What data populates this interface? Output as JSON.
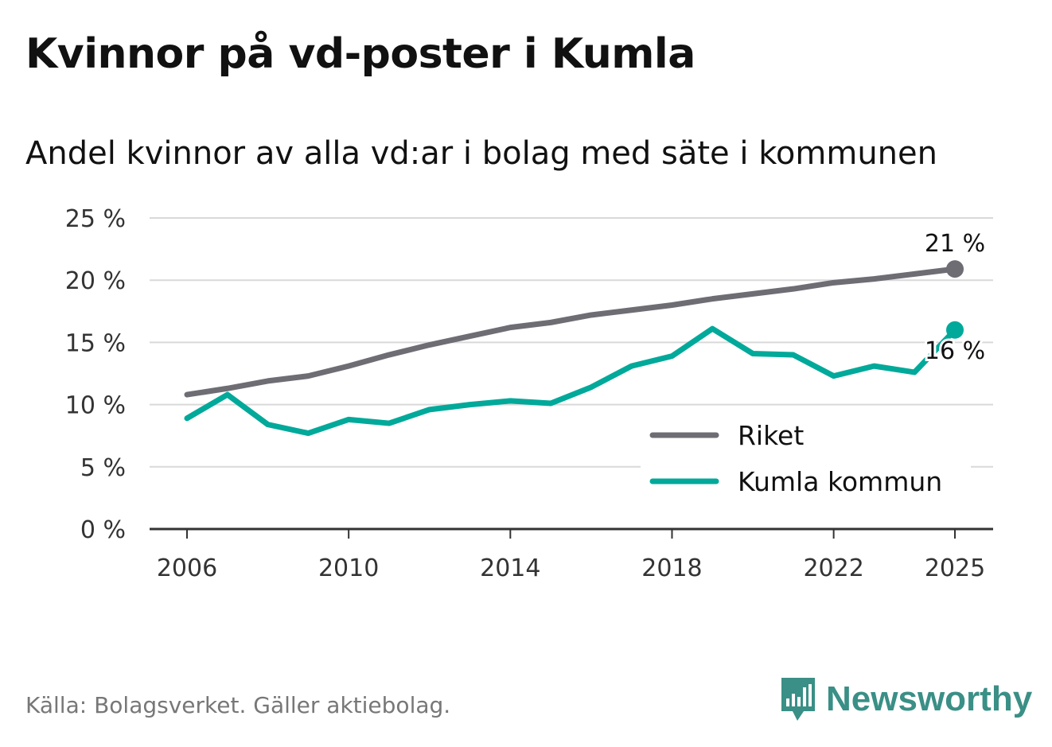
{
  "title": "Kvinnor på vd-poster i Kumla",
  "subtitle": "Andel kvinnor av alla vd:ar i bolag med säte i kommunen",
  "source": "Källa: Bolagsverket. Gäller aktiebolag.",
  "brand": {
    "name": "Newsworthy",
    "icon": "bar-chart-icon",
    "color": "#3a8f86"
  },
  "chart_data": {
    "type": "line",
    "x": [
      2006,
      2007,
      2008,
      2009,
      2010,
      2011,
      2012,
      2013,
      2014,
      2015,
      2016,
      2017,
      2018,
      2019,
      2020,
      2021,
      2022,
      2023,
      2024,
      2025
    ],
    "xlim": [
      2006,
      2025
    ],
    "x_ticks": [
      "2006",
      "2010",
      "2014",
      "2018",
      "2022",
      "2025"
    ],
    "ylim": [
      0,
      25
    ],
    "y_ticks": [
      {
        "value": 0,
        "label": "0 %"
      },
      {
        "value": 5,
        "label": "5 %"
      },
      {
        "value": 10,
        "label": "10 %"
      },
      {
        "value": 15,
        "label": "15 %"
      },
      {
        "value": 20,
        "label": "20 %"
      },
      {
        "value": 25,
        "label": "25 %"
      }
    ],
    "grid": true,
    "legend_position": "bottom-right",
    "series": [
      {
        "name": "Riket",
        "color": "#6e6d74",
        "end_label": "21 %",
        "values": [
          10.8,
          11.3,
          11.9,
          12.3,
          13.1,
          14.0,
          14.8,
          15.5,
          16.2,
          16.6,
          17.2,
          17.6,
          18.0,
          18.5,
          18.9,
          19.3,
          19.8,
          20.1,
          20.5,
          20.9
        ]
      },
      {
        "name": "Kumla kommun",
        "color": "#00a99a",
        "end_label": "16 %",
        "values": [
          8.9,
          10.8,
          8.4,
          7.7,
          8.8,
          8.5,
          9.6,
          10.0,
          10.3,
          10.1,
          11.4,
          13.1,
          13.9,
          16.1,
          14.1,
          14.0,
          12.3,
          13.1,
          12.6,
          16.0
        ]
      }
    ]
  }
}
